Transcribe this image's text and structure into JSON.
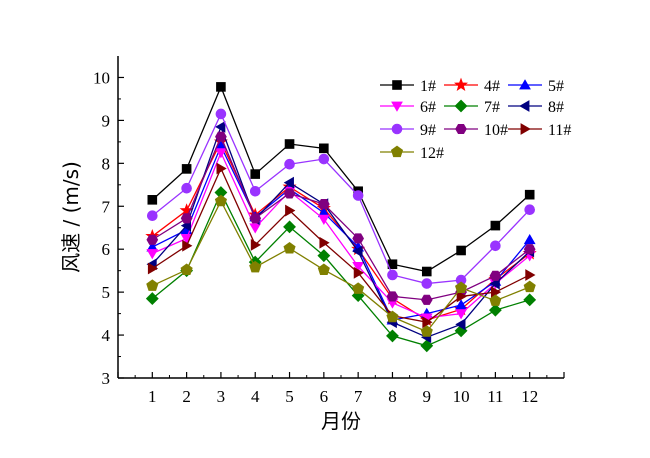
{
  "chart_data": {
    "type": "line",
    "xlabel": "月份",
    "ylabel": "风速 / (m/s)",
    "x": [
      1,
      2,
      3,
      4,
      5,
      6,
      7,
      8,
      9,
      10,
      11,
      12
    ],
    "xlim": [
      0,
      13
    ],
    "ylim": [
      3,
      10.5
    ],
    "yticks": [
      3,
      4,
      5,
      6,
      7,
      8,
      9,
      10
    ],
    "grid": false,
    "legend_position": "top-right",
    "series": [
      {
        "name": "1#",
        "color": "#000000",
        "marker": "square",
        "values": [
          7.15,
          7.87,
          9.78,
          7.75,
          8.45,
          8.35,
          7.35,
          5.65,
          5.48,
          5.97,
          6.55,
          7.27
        ]
      },
      {
        "name": "4#",
        "color": "#ff0000",
        "marker": "star",
        "values": [
          6.3,
          6.9,
          8.5,
          6.8,
          7.45,
          6.95,
          6.0,
          4.85,
          4.35,
          4.6,
          5.3,
          5.9
        ]
      },
      {
        "name": "5#",
        "color": "#0000ff",
        "marker": "triangle-up",
        "values": [
          6.05,
          6.45,
          8.4,
          6.75,
          7.4,
          6.85,
          6.05,
          4.35,
          4.5,
          4.7,
          5.25,
          6.22
        ]
      },
      {
        "name": "6#",
        "color": "#ff00ff",
        "marker": "triangle-down",
        "values": [
          5.9,
          6.25,
          8.25,
          6.5,
          7.35,
          6.7,
          5.6,
          4.75,
          4.4,
          4.5,
          5.2,
          5.85
        ]
      },
      {
        "name": "7#",
        "color": "#008000",
        "marker": "diamond",
        "values": [
          4.85,
          5.5,
          7.32,
          5.7,
          6.52,
          5.85,
          4.92,
          3.98,
          3.75,
          4.1,
          4.58,
          4.82
        ]
      },
      {
        "name": "8#",
        "color": "#000080",
        "marker": "triangle-left",
        "values": [
          5.65,
          6.55,
          8.85,
          6.7,
          7.55,
          7.05,
          5.95,
          4.3,
          3.95,
          4.25,
          5.2,
          5.95
        ]
      },
      {
        "name": "9#",
        "color": "#9933ff",
        "marker": "circle",
        "values": [
          6.78,
          7.42,
          9.15,
          7.35,
          7.98,
          8.1,
          7.25,
          5.4,
          5.2,
          5.28,
          6.08,
          6.92
        ]
      },
      {
        "name": "10#",
        "color": "#800080",
        "marker": "hexagon",
        "values": [
          6.22,
          6.72,
          8.62,
          6.72,
          7.3,
          7.05,
          6.25,
          4.9,
          4.82,
          5.0,
          5.38,
          6.0
        ]
      },
      {
        "name": "11#",
        "color": "#800000",
        "marker": "triangle-right",
        "values": [
          5.55,
          6.08,
          7.88,
          6.1,
          6.9,
          6.15,
          5.45,
          4.45,
          4.3,
          4.9,
          5.0,
          5.4
        ]
      },
      {
        "name": "12#",
        "color": "#808000",
        "marker": "pentagon",
        "values": [
          5.15,
          5.52,
          7.12,
          5.58,
          6.02,
          5.52,
          5.08,
          4.42,
          4.08,
          5.1,
          4.8,
          5.12
        ]
      }
    ]
  }
}
